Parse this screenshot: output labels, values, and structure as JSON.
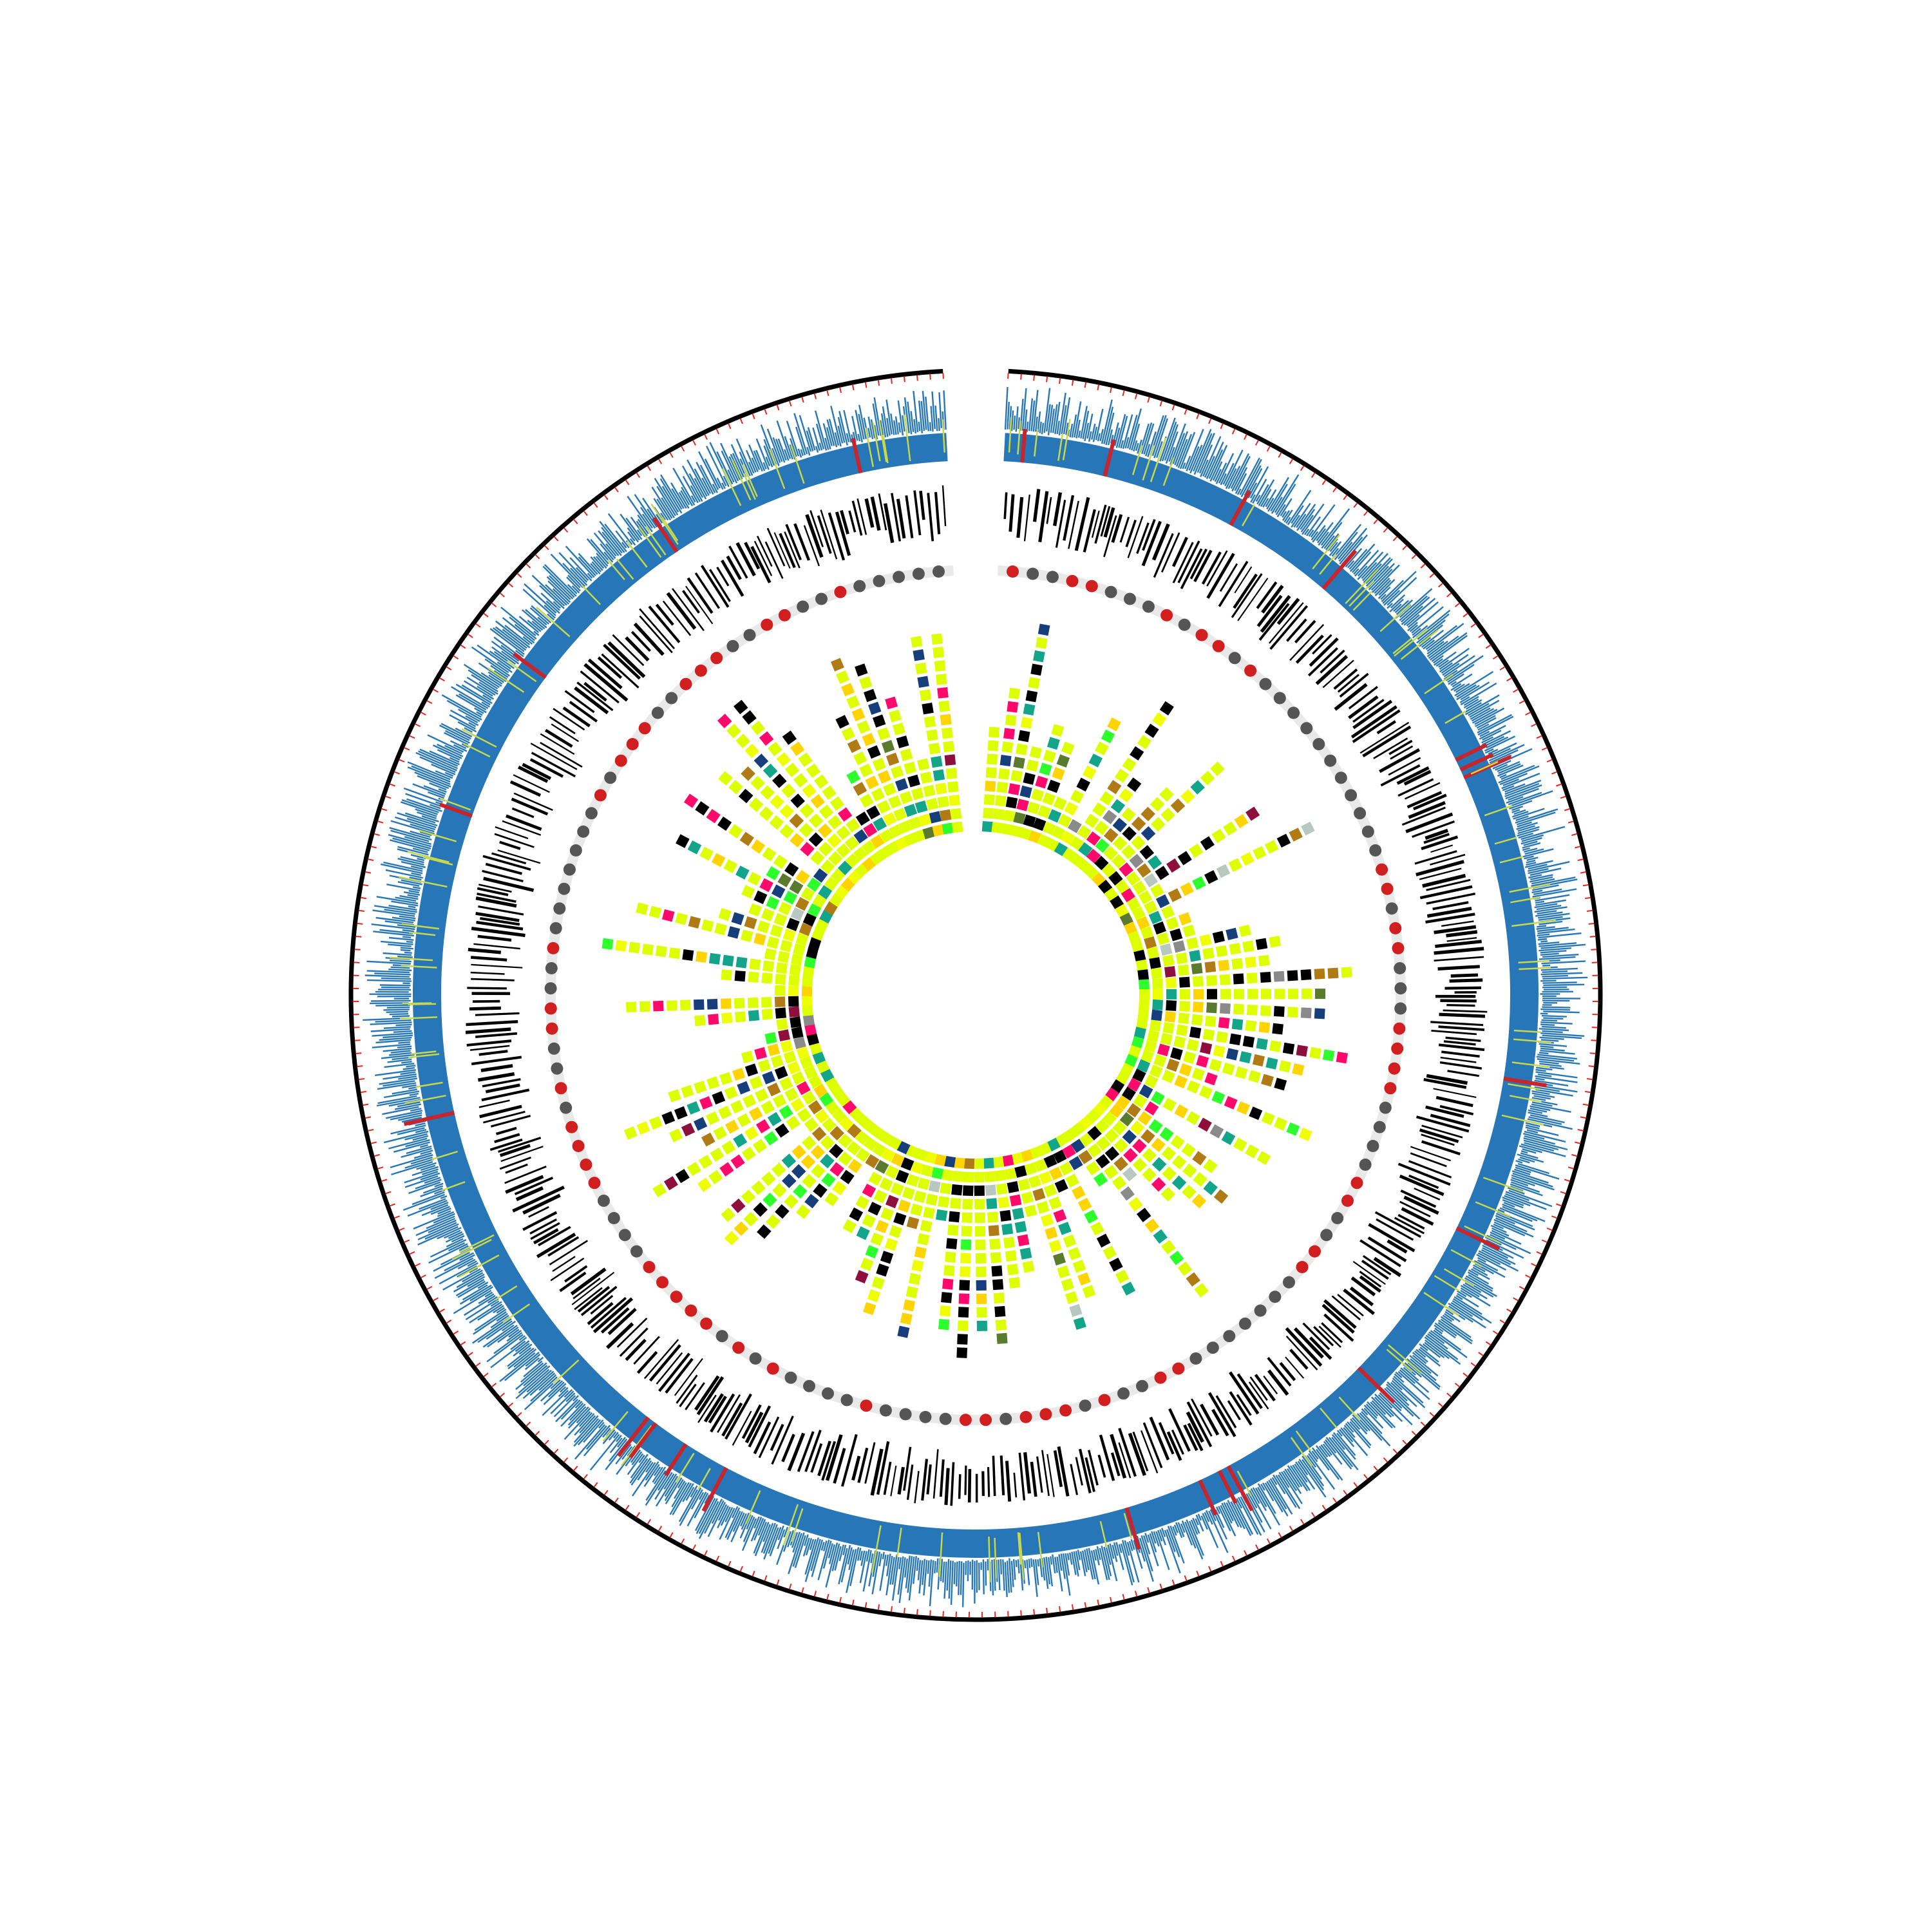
{
  "figure": {
    "type": "circular-genome-plot",
    "gap_at_top": true
  },
  "colors": {
    "background": "#ffffff",
    "outer_ring": "#000000",
    "ruler_ticks": "#e8261c",
    "gene_track": "#2676b8",
    "gene_highlight_yellow": "#c8d84a",
    "gene_highlight_red": "#c8242b",
    "black_bars": "#000000",
    "dot_red": "#d11f1f",
    "dot_gray": "#555555",
    "dot_track_backbone": "#e9e9e9"
  },
  "tracks": [
    {
      "id": "ruler",
      "kind": "ticks"
    },
    {
      "id": "gene-density",
      "kind": "lines"
    },
    {
      "id": "black-bars",
      "kind": "lines"
    },
    {
      "id": "category-dots",
      "kind": "dots",
      "count": 130,
      "colors": [
        "#d11f1f",
        "#555555"
      ]
    },
    {
      "id": "heatmap-stacks",
      "kind": "squares"
    }
  ],
  "heatmap_palette": [
    {
      "color": "#ddff00",
      "weight": 46
    },
    {
      "color": "#f0ff00",
      "weight": 6
    },
    {
      "color": "#000000",
      "weight": 12
    },
    {
      "color": "#13a58a",
      "weight": 6
    },
    {
      "color": "#ff0a6a",
      "weight": 5
    },
    {
      "color": "#ffd400",
      "weight": 5
    },
    {
      "color": "#b07a14",
      "weight": 5
    },
    {
      "color": "#153e7a",
      "weight": 3
    },
    {
      "color": "#2dff2d",
      "weight": 3
    },
    {
      "color": "#5a7a2e",
      "weight": 1
    },
    {
      "color": "#8d0f3c",
      "weight": 1
    },
    {
      "color": "#b8c8c0",
      "weight": 1
    },
    {
      "color": "#8a8a8a",
      "weight": 1
    }
  ]
}
